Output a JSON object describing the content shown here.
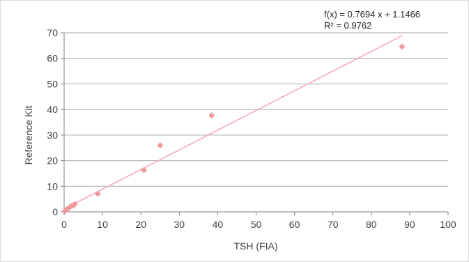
{
  "chart_data": {
    "type": "scatter",
    "title": "",
    "xlabel": "TSH (FIA)",
    "ylabel": "Reference Kit",
    "xlim": [
      0,
      100
    ],
    "ylim": [
      0,
      70
    ],
    "xticks": [
      0,
      10,
      20,
      30,
      40,
      50,
      60,
      70,
      80,
      90,
      100
    ],
    "yticks": [
      0,
      10,
      20,
      30,
      40,
      50,
      60,
      70
    ],
    "grid": "horizontal",
    "legend": "none",
    "colors": {
      "points": "#ef9a9a",
      "trendline": "#f4a7c0",
      "grid": "#a6a6a6",
      "axis": "#7f7f7f"
    },
    "series": [
      {
        "x": [
          0.2,
          0.5,
          0.8,
          1.2,
          1.6,
          2.0,
          2.5,
          2.8,
          8.8,
          20.8,
          25.0,
          38.4,
          88.0
        ],
        "y": [
          0.3,
          0.8,
          1.0,
          1.5,
          2.0,
          2.3,
          2.6,
          3.1,
          7.0,
          16.3,
          26.0,
          37.7,
          64.6
        ]
      }
    ],
    "trendline": {
      "slope": 0.7694,
      "intercept": 1.1466,
      "x_range": [
        0,
        88
      ],
      "equation_label": "f(x) = 0.7694 x + 1.1466",
      "r2_label": "R² = 0.9762"
    }
  }
}
